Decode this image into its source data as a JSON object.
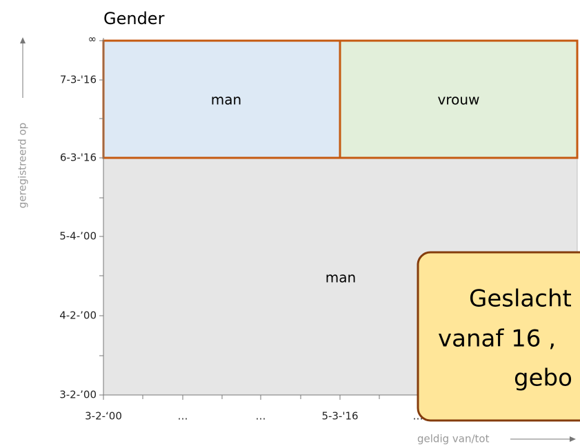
{
  "title": "Gender",
  "y_axis": {
    "title": "geregistreerd op",
    "labels": [
      "∞",
      "7-3-'16",
      "6-3-'16",
      "5-4-’00",
      "4-2-’00",
      "3-2-’00"
    ]
  },
  "x_axis": {
    "title": "geldig van/tot",
    "labels": [
      "3-2-‘00",
      "…",
      "…",
      "5-3-'16",
      "…"
    ]
  },
  "regions": [
    {
      "label": "man"
    },
    {
      "label": "vrouw"
    },
    {
      "label": "man"
    }
  ],
  "callout": {
    "lines": [
      "Geslacht",
      "vanaf 16 ,",
      "gebo"
    ]
  }
}
